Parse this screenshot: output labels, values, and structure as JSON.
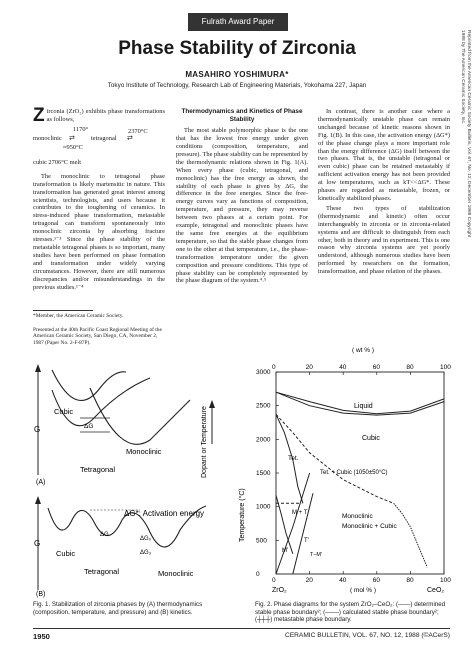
{
  "header": {
    "award_tab": "Fulrath Award Paper",
    "title": "Phase Stability of Zirconia",
    "author": "MASAHIRO YOSHIMURA*",
    "affiliation": "Tokyo Institute of Technology, Research Lab of Engineering Materials, Yokohama 227, Japan",
    "reprint_note": "Reprinted from the American Ceramic Society Bulletin, Vol. 67, No. 12, December 1988 Copyright 1988 by The American Ceramic Society, Inc."
  },
  "col1": {
    "intro": "irconia (ZrO₂) exhibits phase transformations as follows,",
    "dropcap": "Z",
    "eq1_temp1": "1170°",
    "eq1_temp2": "2370°C",
    "eq1_temp3": "≈950°C",
    "eq1_a": "monoclinic",
    "eq1_b": "tetragonal",
    "eq2": "cubic 2706°C melt",
    "para": "The monoclinic to tetragonal phase transformation is likely martensitic in nature. This transformation has generated great interest among scientists, technologists, and users because it contributes to the toughening of ceramics. In stress-induced phase transformation, metastable tetragonal can transform spontaneously into monoclinic zirconia by absorbing fracture stresses.¹⁻³ Since the phase stability of the metastable tetragonal phases is so important, many studies have been performed on phase formation and transformation under widely varying circumstances. However, there are still numerous discrepancies and/or misunderstandings in the previous studies.¹⁻⁴",
    "footnote1": "*Member, the American Ceramic Society.",
    "footnote2": "Presented at the 40th Pacific Coast Regional Meeting of the American Ceramic Society, San Diego, CA, November 2, 1987 (Paper No. 2-F-87P)."
  },
  "col2": {
    "heading": "Thermodynamics and Kinetics of Phase Stability",
    "para": "The most stable polymorphic phase is the one that has the lowest free energy under given conditions (composition, temperature, and pressure). The phase stability can be represented by the thermodynamic relations shown in Fig. 1(A). When every phase (cubic, tetragonal, and monoclinic) has the free energy as shown, the stability of each phase is given by ΔG, the difference in the free energies. Since the free-energy curves vary as functions of composition, temperature, and pressure, they may reverse between two phases at a certain point. For example, tetragonal and monoclinic phases have the same free energies at the equilibrium temperature, so that the stable phase changes from one to the other at that temperature, i.e., the phase-transformation temperature under the given composition and pressure conditions. This type of phase stability can be completely represented by the phase diagram of the system.⁴˒⁵"
  },
  "col3": {
    "para1": "In contrast, there is another case where a thermodynamically unstable phase can remain unchanged because of kinetic reasons shown in Fig. 1(B). In this case, the activation energy (ΔG*) of the phase change plays a more important role than the energy difference (ΔG) itself between the two phases. That is, the unstable (tetragonal or even cubic) phase can be retained metastably if sufficient activation energy has not been provided at low temperatures, such as kT<<ΔG*. These phases are regarded as metastable, frozen, or kinetically stabilized phases.",
    "para2": "These two types of stabilization (thermodynamic and kinetic) often occur interchangeably in zirconia or in zirconia-related systems and are difficult to distinguish from each other, both in theory and in experiment. This is one reason why zirconia systems are yet poorly understood, although numerous studies have been performed by researchers on the formation, transformation, and phase relation of the phases."
  },
  "fig1": {
    "axis_g": "G",
    "cubic": "Cubic",
    "dg": "ΔG",
    "tetragonal": "Tetragonal",
    "monoclinic": "Monoclinic",
    "side_axis": "Dopant or Temperature",
    "label_a": "(A)",
    "label_b": "(B)",
    "dg_star": "ΔG*: Activation energy",
    "dg_t": "ΔG₀",
    "dg_3": "ΔG₃",
    "dg_small": "ΔG",
    "caption": "Fig. 1.  Stabilization of zirconia phases by (A) thermodynamics (composition, temperature, and pressure) and (B) kinetics."
  },
  "fig2": {
    "wt_label": "( wt % )",
    "mol_label": "( mol % )",
    "ylabel": "Temperature (°C)",
    "x_left": "ZrO₂",
    "x_right": "CeO₂",
    "liquid": "Liquid",
    "cubic": "Cubic",
    "tet": "Tet.",
    "tet_cubic": "Tet. + Cubic (1050±50°C)",
    "mono": "Monoclinic",
    "mono_cubic": "Monoclinic + Cubic",
    "M_plus_T": "M + T",
    "m_prime": "M'",
    "t_prime": "T'",
    "t_m": "T–M'",
    "caption": "Fig. 2.  Phase diagrams for the system ZrO₂–CeO₂: (——) determined stable phase boundary²; (––––) calculated stable phase boundary²; (┼┼┼) metastable phase boundary."
  },
  "chart_data": {
    "type": "line",
    "title": "",
    "xlabel": "( mol % )",
    "ylabel": "Temperature (°C)",
    "x_ticks": [
      0,
      20,
      40,
      60,
      80,
      100
    ],
    "x2_ticks": [
      0,
      20,
      40,
      60,
      80,
      100
    ],
    "x2_label": "( wt % )",
    "y_ticks": [
      0,
      500,
      1000,
      1500,
      2000,
      2500,
      3000
    ],
    "xlim": [
      0,
      100
    ],
    "ylim": [
      0,
      3000
    ],
    "series": [
      {
        "x": [
          0,
          20,
          40,
          60,
          80,
          100
        ],
        "y": [
          2700,
          2560,
          2430,
          2380,
          2420,
          2600
        ]
      },
      {
        "x": [
          0,
          20,
          40,
          60,
          80,
          100
        ],
        "y": [
          2700,
          2500,
          2390,
          2360,
          2390,
          2560
        ]
      },
      {
        "x": [
          0,
          5,
          10,
          13,
          16
        ],
        "y": [
          2370,
          2100,
          1700,
          1300,
          1050
        ]
      },
      {
        "x": [
          0,
          10,
          20,
          40,
          60,
          70
        ],
        "y": [
          2370,
          2100,
          1800,
          1400,
          1150,
          1050
        ]
      },
      {
        "x": [
          0,
          3,
          6,
          10
        ],
        "y": [
          1170,
          900,
          600,
          300
        ]
      },
      {
        "x": [
          70,
          75,
          80,
          85,
          90
        ],
        "y": [
          1050,
          900,
          700,
          400,
          100
        ]
      },
      {
        "x": [
          0,
          15
        ],
        "y": [
          1050,
          1050
        ]
      },
      {
        "x": [
          0,
          10,
          20
        ],
        "y": [
          0,
          700,
          1500
        ]
      },
      {
        "x": [
          10,
          16,
          22
        ],
        "y": [
          0,
          600,
          1200
        ]
      }
    ]
  }
}
